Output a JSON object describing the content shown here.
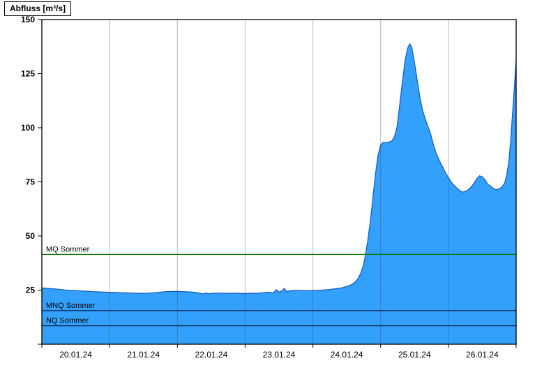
{
  "title": "Abfluss [m³/s]",
  "chart_data": {
    "type": "area",
    "title": "Abfluss [m³/s]",
    "ylabel": "Abfluss [m³/s]",
    "xlabel": "",
    "ylim": [
      0,
      150
    ],
    "x_days": 7,
    "grid": "vertical lines at day boundaries, no horizontal gridlines",
    "legend_position": "none",
    "yticks": [
      0,
      25,
      50,
      75,
      100,
      125,
      150
    ],
    "ytick_labels": [
      "",
      "25",
      "50",
      "75",
      "100",
      "125",
      "150"
    ],
    "x_categories": [
      "20.01.24",
      "21.01.24",
      "22.01.24",
      "23.01.24",
      "24.01.24",
      "25.01.24",
      "26.01.24"
    ],
    "colors": {
      "fill": "#33a1fb",
      "stroke": "#1456c0",
      "grid": "rgba(60,68,96,0.38)",
      "axis": "#000000"
    },
    "reference_lines": [
      {
        "label": "MQ Sommer",
        "value": 41.5,
        "color": "#007d00"
      },
      {
        "label": "MNQ Sommer",
        "value": 15.5,
        "color": "#0a1c4e"
      },
      {
        "label": "NQ Sommer",
        "value": 8.5,
        "color": "#0a1c4e"
      }
    ],
    "series": [
      {
        "name": "Abfluss",
        "unit": "m³/s",
        "points": [
          [
            0,
            26
          ],
          [
            0.08,
            25.8
          ],
          [
            0.17,
            25.6
          ],
          [
            0.25,
            25.4
          ],
          [
            0.33,
            25.1
          ],
          [
            0.42,
            24.9
          ],
          [
            0.5,
            24.8
          ],
          [
            0.58,
            24.6
          ],
          [
            0.67,
            24.5
          ],
          [
            0.75,
            24.3
          ],
          [
            0.83,
            24.2
          ],
          [
            0.92,
            24.1
          ],
          [
            1.0,
            24.0
          ],
          [
            1.08,
            23.9
          ],
          [
            1.17,
            23.8
          ],
          [
            1.25,
            23.7
          ],
          [
            1.33,
            23.6
          ],
          [
            1.42,
            23.5
          ],
          [
            1.5,
            23.5
          ],
          [
            1.58,
            23.6
          ],
          [
            1.67,
            23.8
          ],
          [
            1.75,
            24.1
          ],
          [
            1.83,
            24.3
          ],
          [
            1.92,
            24.4
          ],
          [
            2.0,
            24.4
          ],
          [
            2.08,
            24.3
          ],
          [
            2.17,
            24.2
          ],
          [
            2.25,
            24.0
          ],
          [
            2.33,
            23.6
          ],
          [
            2.38,
            23.2
          ],
          [
            2.42,
            23.7
          ],
          [
            2.46,
            23.3
          ],
          [
            2.5,
            23.5
          ],
          [
            2.58,
            23.6
          ],
          [
            2.67,
            23.6
          ],
          [
            2.75,
            23.5
          ],
          [
            2.83,
            23.6
          ],
          [
            2.92,
            23.5
          ],
          [
            3.0,
            23.4
          ],
          [
            3.08,
            23.6
          ],
          [
            3.17,
            23.5
          ],
          [
            3.25,
            23.8
          ],
          [
            3.33,
            24.0
          ],
          [
            3.42,
            23.8
          ],
          [
            3.46,
            25.2
          ],
          [
            3.5,
            24.1
          ],
          [
            3.54,
            24.6
          ],
          [
            3.58,
            25.8
          ],
          [
            3.61,
            24.3
          ],
          [
            3.67,
            24.7
          ],
          [
            3.75,
            24.9
          ],
          [
            3.83,
            24.8
          ],
          [
            3.92,
            24.7
          ],
          [
            4.0,
            24.8
          ],
          [
            4.08,
            24.9
          ],
          [
            4.17,
            25.1
          ],
          [
            4.25,
            25.3
          ],
          [
            4.33,
            25.6
          ],
          [
            4.42,
            26.0
          ],
          [
            4.5,
            26.7
          ],
          [
            4.56,
            27.4
          ],
          [
            4.62,
            28.6
          ],
          [
            4.67,
            30.5
          ],
          [
            4.71,
            33
          ],
          [
            4.75,
            37
          ],
          [
            4.78,
            42
          ],
          [
            4.81,
            48
          ],
          [
            4.84,
            55
          ],
          [
            4.87,
            63
          ],
          [
            4.9,
            72
          ],
          [
            4.93,
            80
          ],
          [
            4.96,
            87
          ],
          [
            5.0,
            92
          ],
          [
            5.04,
            93.3
          ],
          [
            5.08,
            93.1
          ],
          [
            5.12,
            93.4
          ],
          [
            5.16,
            93.8
          ],
          [
            5.2,
            95.5
          ],
          [
            5.24,
            100
          ],
          [
            5.28,
            110
          ],
          [
            5.32,
            121
          ],
          [
            5.36,
            131
          ],
          [
            5.4,
            137
          ],
          [
            5.43,
            138.8
          ],
          [
            5.46,
            137.2
          ],
          [
            5.5,
            130
          ],
          [
            5.54,
            122
          ],
          [
            5.58,
            114
          ],
          [
            5.62,
            108
          ],
          [
            5.66,
            104
          ],
          [
            5.7,
            100.5
          ],
          [
            5.74,
            97
          ],
          [
            5.78,
            92
          ],
          [
            5.83,
            87.5
          ],
          [
            5.88,
            84
          ],
          [
            5.92,
            81.5
          ],
          [
            5.96,
            79
          ],
          [
            6.0,
            77
          ],
          [
            6.04,
            75
          ],
          [
            6.08,
            73.5
          ],
          [
            6.13,
            72
          ],
          [
            6.17,
            71
          ],
          [
            6.21,
            70.3
          ],
          [
            6.25,
            70.6
          ],
          [
            6.29,
            71.3
          ],
          [
            6.33,
            72.5
          ],
          [
            6.38,
            74.5
          ],
          [
            6.42,
            76.5
          ],
          [
            6.46,
            77.8
          ],
          [
            6.5,
            77.4
          ],
          [
            6.54,
            76
          ],
          [
            6.58,
            74
          ],
          [
            6.63,
            72.8
          ],
          [
            6.67,
            71.8
          ],
          [
            6.71,
            71.4
          ],
          [
            6.75,
            71.8
          ],
          [
            6.79,
            72.6
          ],
          [
            6.83,
            74.5
          ],
          [
            6.86,
            78
          ],
          [
            6.89,
            84
          ],
          [
            6.92,
            94
          ],
          [
            6.95,
            108
          ],
          [
            6.98,
            122
          ],
          [
            7.0,
            132
          ]
        ]
      }
    ]
  }
}
